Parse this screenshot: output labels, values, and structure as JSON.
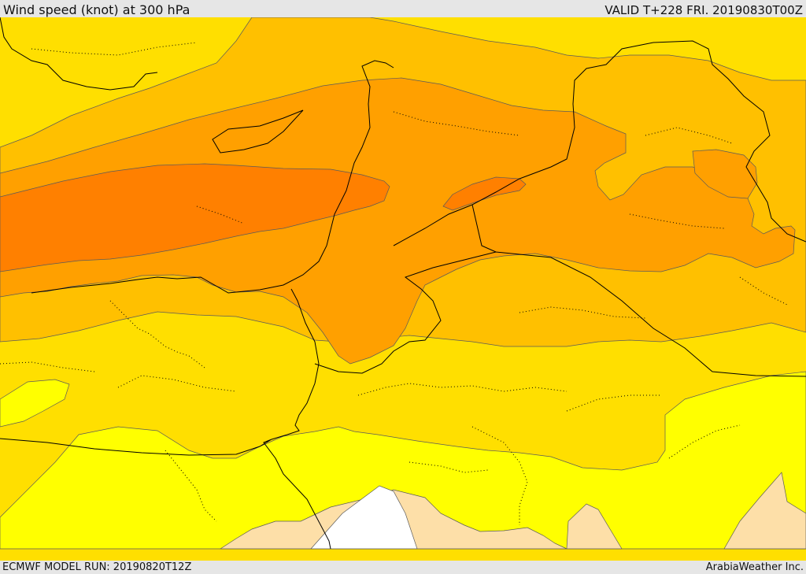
{
  "header": {
    "title": "Wind speed (knot) at 300 hPa",
    "valid": "VALID T+228 FRI. 20190830T00Z"
  },
  "footer": {
    "model_run": "ECMWF MODEL RUN: 20190820T12Z",
    "credit": "ArabiaWeather Inc."
  },
  "colors": {
    "white_band": "#ffffff",
    "tan_band": "#fddfa8",
    "yellow_band": "#ffff00",
    "gold_band": "#ffdf00",
    "light_orange_band": "#ffc000",
    "orange_band": "#ffa000",
    "dark_orange_band": "#ff8000",
    "land_border": "#000000"
  }
}
